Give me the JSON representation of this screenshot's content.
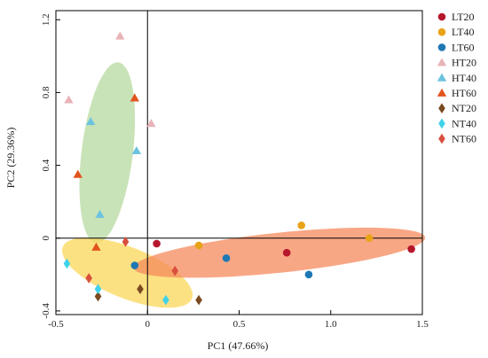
{
  "chart_data": {
    "type": "scatter",
    "xlabel": "PC1 (47.66%)",
    "ylabel": "PC2 (29.36%)",
    "xlim": [
      -0.5,
      1.5
    ],
    "ylim": [
      -0.42,
      1.25
    ],
    "xticks": [
      -0.5,
      0,
      0.5,
      1.0,
      1.5
    ],
    "xtick_labels": [
      "-0.5",
      "0",
      "0.5",
      "1.0",
      "1.5"
    ],
    "yticks": [
      -0.4,
      0,
      0.4,
      0.8,
      1.2
    ],
    "ytick_labels": [
      "-0.4",
      "0",
      "0.4",
      "0.8",
      "1.2"
    ],
    "grid": false,
    "reference_lines": {
      "x": 0,
      "y": 0
    },
    "legend_position": "right",
    "series": [
      {
        "name": "LT20",
        "marker": "circle",
        "color": "#b5172b",
        "points": [
          [
            0.05,
            -0.03
          ],
          [
            0.76,
            -0.08
          ],
          [
            1.44,
            -0.06
          ]
        ]
      },
      {
        "name": "LT40",
        "marker": "circle",
        "color": "#e8a317",
        "points": [
          [
            0.28,
            -0.04
          ],
          [
            0.84,
            0.07
          ],
          [
            1.21,
            0.0
          ]
        ]
      },
      {
        "name": "LT60",
        "marker": "circle",
        "color": "#1f78b4",
        "points": [
          [
            -0.07,
            -0.15
          ],
          [
            0.43,
            -0.11
          ],
          [
            0.88,
            -0.2
          ]
        ]
      },
      {
        "name": "HT20",
        "marker": "triangle",
        "color": "#e8b4b8",
        "points": [
          [
            -0.43,
            0.76
          ],
          [
            -0.15,
            1.11
          ],
          [
            0.02,
            0.63
          ]
        ]
      },
      {
        "name": "HT40",
        "marker": "triangle",
        "color": "#6cc3e0",
        "points": [
          [
            -0.31,
            0.64
          ],
          [
            -0.26,
            0.13
          ],
          [
            -0.06,
            0.48
          ]
        ]
      },
      {
        "name": "HT60",
        "marker": "triangle",
        "color": "#e2541e",
        "points": [
          [
            -0.38,
            0.35
          ],
          [
            -0.28,
            -0.05
          ],
          [
            -0.07,
            0.77
          ]
        ]
      },
      {
        "name": "NT20",
        "marker": "diamond",
        "color": "#7a4a21",
        "points": [
          [
            -0.27,
            -0.32
          ],
          [
            -0.04,
            -0.28
          ],
          [
            0.28,
            -0.34
          ]
        ]
      },
      {
        "name": "NT40",
        "marker": "diamond",
        "color": "#3ed3ea",
        "points": [
          [
            -0.44,
            -0.14
          ],
          [
            -0.27,
            -0.28
          ],
          [
            0.1,
            -0.34
          ]
        ]
      },
      {
        "name": "NT60",
        "marker": "diamond",
        "color": "#d94f3d",
        "points": [
          [
            -0.32,
            -0.22
          ],
          [
            -0.12,
            -0.02
          ],
          [
            0.15,
            -0.18
          ]
        ]
      }
    ],
    "confidence_ellipses": [
      {
        "group": "HT",
        "color": "#9ccc7e",
        "opacity": 0.55,
        "center": [
          -0.22,
          0.47
        ],
        "semi_axes": [
          0.5,
          0.14
        ],
        "angle_deg": 83
      },
      {
        "group": "NT",
        "color": "#fbd75a",
        "opacity": 0.75,
        "center": [
          -0.11,
          -0.19
        ],
        "semi_axes": [
          0.38,
          0.14
        ],
        "angle_deg": -22
      },
      {
        "group": "LT",
        "color": "#f58a5c",
        "opacity": 0.75,
        "center": [
          0.72,
          -0.08
        ],
        "semi_axes": [
          0.8,
          0.11
        ],
        "angle_deg": 6
      }
    ]
  }
}
